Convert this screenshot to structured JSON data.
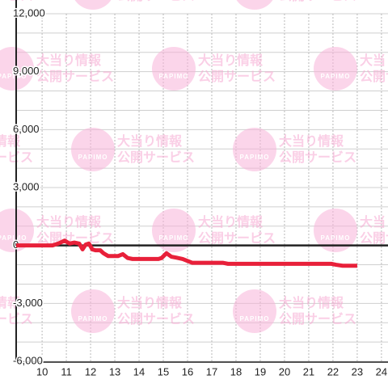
{
  "chart_data": {
    "type": "line",
    "watermark": {
      "logo": "PAPIMO",
      "line1": "大当り情報",
      "line2": "公開サービス"
    },
    "x": [
      8.93,
      10.43,
      10.67,
      10.93,
      11.13,
      11.33,
      11.53,
      11.67,
      11.8,
      11.93,
      12.07,
      12.2,
      12.4,
      12.53,
      12.73,
      13.13,
      13.33,
      13.53,
      13.73,
      14.8,
      14.93,
      15.13,
      15.33,
      15.53,
      15.8,
      16.0,
      16.2,
      17.47,
      17.67,
      21.93,
      22.13,
      22.4,
      23.0
    ],
    "series": [
      {
        "color": "#e8203a",
        "values": [
          0,
          0,
          100,
          250,
          100,
          150,
          100,
          -200,
          50,
          100,
          -200,
          -250,
          -250,
          -400,
          -550,
          -550,
          -450,
          -650,
          -700,
          -700,
          -650,
          -400,
          -580,
          -630,
          -700,
          -800,
          -900,
          -900,
          -950,
          -950,
          -1000,
          -1050,
          -1050
        ]
      }
    ],
    "xlim": [
      8.93,
      24.27
    ],
    "xticks": [
      10,
      11,
      12,
      13,
      14,
      15,
      16,
      17,
      18,
      19,
      20,
      21,
      22,
      23,
      24
    ],
    "ylim": [
      -6000,
      12000
    ],
    "yticks": [
      {
        "value": -6000,
        "label": "-6,000"
      },
      {
        "value": -3000,
        "label": "-3,000"
      },
      0,
      {
        "value": 3000,
        "label": "3,000"
      },
      {
        "value": 6000,
        "label": "6,000"
      },
      {
        "value": 9000,
        "label": "9,000"
      },
      {
        "value": 12000,
        "label": "12,000"
      }
    ],
    "minor_yticks": [
      -5000,
      -4000,
      -2000,
      -1000,
      1000,
      2000,
      4000,
      5000,
      7000,
      8000,
      10000,
      11000
    ],
    "grid": true
  }
}
